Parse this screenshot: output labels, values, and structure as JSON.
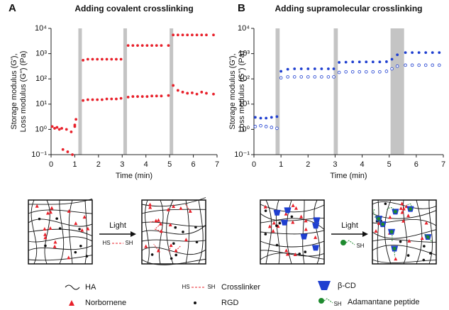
{
  "chart_data": [
    {
      "type": "scatter",
      "panel": "A",
      "title": "Adding covalent crosslinking",
      "xlabel": "Time (min)",
      "ylabel": [
        "Storage modulus (G'),",
        "Loss modulus (G'') (Pa)"
      ],
      "xlim": [
        0,
        7
      ],
      "xticks": [
        0,
        1,
        2,
        3,
        4,
        5,
        6,
        7
      ],
      "ylim": [
        0.1,
        10000
      ],
      "log_y": true,
      "yticks": [
        {
          "value": 0.1,
          "label": "10⁻¹"
        },
        {
          "value": 1,
          "label": "10⁰"
        },
        {
          "value": 10,
          "label": "10¹"
        },
        {
          "value": 100,
          "label": "10²"
        },
        {
          "value": 1000,
          "label": "10³"
        },
        {
          "value": 10000,
          "label": "10⁴"
        }
      ],
      "shaded_spans": [
        [
          1.15,
          1.3
        ],
        [
          3.05,
          3.2
        ],
        [
          5.0,
          5.15
        ]
      ],
      "shade_color": "#c4c4c4",
      "series": [
        {
          "color": "#e8202a",
          "marker": "filled",
          "x": [
            0.05,
            0.25,
            0.45,
            0.65,
            0.85,
            1.0,
            1.05,
            1.35,
            1.55,
            1.75,
            1.95,
            2.15,
            2.35,
            2.55,
            2.75,
            2.95,
            3.25,
            3.45,
            3.65,
            3.85,
            4.05,
            4.25,
            4.45,
            4.65,
            4.95,
            5.15,
            5.35,
            5.55,
            5.75,
            5.95,
            6.15,
            6.35,
            6.55,
            6.85
          ],
          "values": [
            1.3,
            1.2,
            1.1,
            1.0,
            0.8,
            1.5,
            2.5,
            550,
            600,
            600,
            600,
            600,
            600,
            600,
            600,
            600,
            2100,
            2100,
            2100,
            2100,
            2100,
            2100,
            2100,
            2100,
            2100,
            5500,
            5500,
            5500,
            5500,
            5500,
            5500,
            5500,
            5500,
            5500
          ]
        },
        {
          "color": "#e8202a",
          "marker": "filled",
          "x": [
            0.15,
            0.35,
            0.5,
            0.7,
            0.9,
            1.0,
            1.35,
            1.55,
            1.75,
            1.95,
            2.15,
            2.35,
            2.55,
            2.75,
            2.95,
            3.25,
            3.45,
            3.65,
            3.85,
            4.05,
            4.25,
            4.45,
            4.65,
            4.95,
            5.15,
            5.35,
            5.55,
            5.75,
            5.95,
            6.15,
            6.35,
            6.55,
            6.85
          ],
          "values": [
            1.1,
            1.0,
            0.16,
            0.13,
            0.1,
            1.3,
            14,
            15,
            15,
            15,
            15,
            16,
            16,
            16,
            17,
            19,
            20,
            20,
            20,
            20,
            21,
            21,
            21,
            22,
            55,
            35,
            30,
            27,
            28,
            25,
            30,
            27,
            25
          ]
        }
      ]
    },
    {
      "type": "scatter",
      "panel": "B",
      "title": "Adding supramolecular crosslinking",
      "xlabel": "Time (min)",
      "ylabel": [
        "Storage modulus (G'),",
        "Loss modulus (G'') (Pa)"
      ],
      "xlim": [
        0,
        7
      ],
      "xticks": [
        0,
        1,
        2,
        3,
        4,
        5,
        6,
        7
      ],
      "ylim": [
        0.1,
        10000
      ],
      "log_y": true,
      "yticks": [
        {
          "value": 0.1,
          "label": "10⁻¹"
        },
        {
          "value": 1,
          "label": "10⁰"
        },
        {
          "value": 10,
          "label": "10¹"
        },
        {
          "value": 100,
          "label": "10²"
        },
        {
          "value": 1000,
          "label": "10³"
        },
        {
          "value": 10000,
          "label": "10⁴"
        }
      ],
      "shaded_spans": [
        [
          0.8,
          0.95
        ],
        [
          2.95,
          3.1
        ],
        [
          5.05,
          5.55
        ]
      ],
      "shade_color": "#c4c4c4",
      "series": [
        {
          "color": "#1f3fd0",
          "marker": "filled",
          "x": [
            0.05,
            0.25,
            0.45,
            0.65,
            0.85,
            1.0,
            1.25,
            1.5,
            1.75,
            2.0,
            2.25,
            2.5,
            2.75,
            2.95,
            3.15,
            3.4,
            3.65,
            3.9,
            4.15,
            4.4,
            4.65,
            4.9,
            5.1,
            5.3,
            5.6,
            5.85,
            6.1,
            6.35,
            6.6,
            6.85
          ],
          "values": [
            3,
            2.8,
            2.8,
            3,
            3.2,
            200,
            240,
            250,
            250,
            250,
            250,
            250,
            250,
            250,
            450,
            460,
            470,
            470,
            470,
            470,
            470,
            480,
            600,
            900,
            1100,
            1100,
            1100,
            1100,
            1100,
            1100
          ]
        },
        {
          "color": "#1f3fd0",
          "marker": "open",
          "x": [
            0.05,
            0.25,
            0.45,
            0.65,
            0.85,
            1.0,
            1.25,
            1.5,
            1.75,
            2.0,
            2.25,
            2.5,
            2.75,
            2.95,
            3.15,
            3.4,
            3.65,
            3.9,
            4.15,
            4.4,
            4.65,
            4.9,
            5.1,
            5.3,
            5.6,
            5.85,
            6.1,
            6.35,
            6.6,
            6.85
          ],
          "values": [
            1.3,
            1.4,
            1.3,
            1.2,
            1.1,
            110,
            120,
            120,
            120,
            120,
            120,
            120,
            120,
            120,
            180,
            190,
            190,
            190,
            190,
            190,
            190,
            200,
            250,
            320,
            350,
            350,
            350,
            350,
            350,
            350
          ]
        }
      ]
    }
  ],
  "schematic": {
    "arrow_a": {
      "label": "Light",
      "hs": "HS",
      "sh": "SH"
    },
    "arrow_b": {
      "label": "Light",
      "sh": "SH"
    },
    "legend": {
      "ha": "HA",
      "norbornene": "Norbornene",
      "crosslinker_hs": "HS",
      "crosslinker_sh": "SH",
      "crosslinker": "Crosslinker",
      "rgd": "RGD",
      "bcd": "β-CD",
      "adamantane_sh": "SH",
      "adamantane": "Adamantane peptide"
    }
  }
}
